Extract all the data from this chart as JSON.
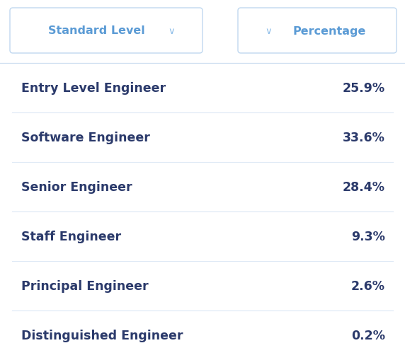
{
  "background_color": "#ffffff",
  "row_divider_color": "#dce8f5",
  "top_divider_color": "#ccddf0",
  "btn1_text": "Standard Level",
  "btn2_text": "Percentage",
  "btn_text_color": "#5b9bd5",
  "btn_arrow_color": "#8bbce8",
  "btn_border_color": "#c0d8f0",
  "btn_bg_color": "#ffffff",
  "label_color": "#2b3a6b",
  "value_color": "#2b3a6b",
  "rows": [
    {
      "label": "Entry Level Engineer",
      "value": "25.9%"
    },
    {
      "label": "Software Engineer",
      "value": "33.6%"
    },
    {
      "label": "Senior Engineer",
      "value": "28.4%"
    },
    {
      "label": "Staff Engineer",
      "value": "9.3%"
    },
    {
      "label": "Principal Engineer",
      "value": "2.6%"
    },
    {
      "label": "Distinguished Engineer",
      "value": "0.2%"
    }
  ],
  "label_fontsize": 12.5,
  "value_fontsize": 12.5,
  "btn_fontsize": 11.5,
  "btn_arrow_fontsize": 9.5
}
